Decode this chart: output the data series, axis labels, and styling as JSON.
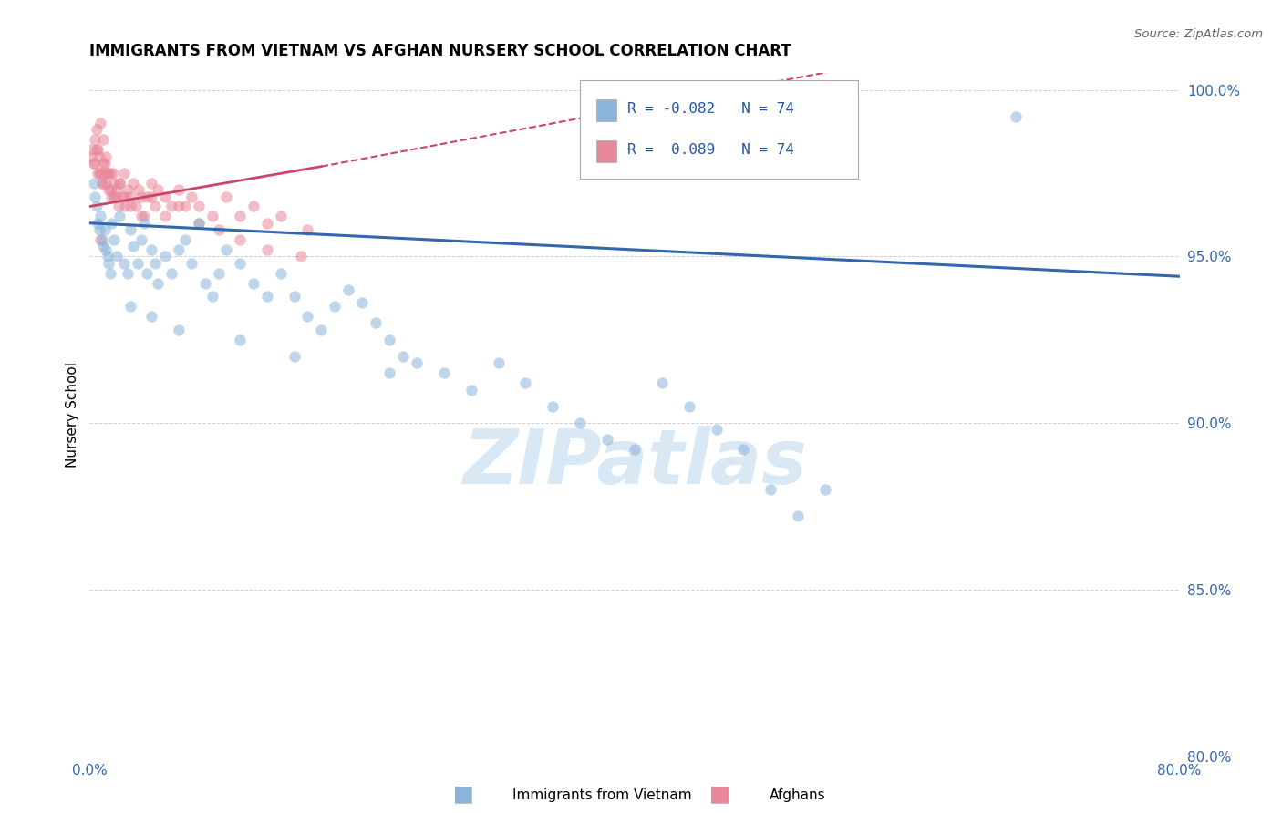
{
  "title": "IMMIGRANTS FROM VIETNAM VS AFGHAN NURSERY SCHOOL CORRELATION CHART",
  "source": "Source: ZipAtlas.com",
  "ylabel": "Nursery School",
  "legend_bottom": [
    "Immigrants from Vietnam",
    "Afghans"
  ],
  "xlim": [
    0.0,
    0.8
  ],
  "ylim": [
    0.8,
    1.005
  ],
  "xticks": [
    0.0,
    0.2,
    0.4,
    0.6,
    0.8
  ],
  "xtick_labels": [
    "0.0%",
    "",
    "",
    "",
    "80.0%"
  ],
  "ytick_labels": [
    "80.0%",
    "85.0%",
    "90.0%",
    "95.0%",
    "100.0%"
  ],
  "yticks": [
    0.8,
    0.85,
    0.9,
    0.95,
    1.0
  ],
  "legend_r_blue": "R = -0.082",
  "legend_n_blue": "N = 74",
  "legend_r_pink": "R =  0.089",
  "legend_n_pink": "N = 74",
  "blue_color": "#8ab4d9",
  "pink_color": "#e8879a",
  "blue_line_color": "#3366aa",
  "pink_line_color": "#cc4466",
  "watermark": "ZIPatlas",
  "watermark_color": "#d8e8f5",
  "blue_scatter_x": [
    0.003,
    0.004,
    0.005,
    0.006,
    0.007,
    0.008,
    0.009,
    0.01,
    0.011,
    0.012,
    0.013,
    0.014,
    0.015,
    0.016,
    0.018,
    0.02,
    0.022,
    0.025,
    0.028,
    0.03,
    0.032,
    0.035,
    0.038,
    0.04,
    0.042,
    0.045,
    0.048,
    0.05,
    0.055,
    0.06,
    0.065,
    0.07,
    0.075,
    0.08,
    0.085,
    0.09,
    0.095,
    0.1,
    0.11,
    0.12,
    0.13,
    0.14,
    0.15,
    0.16,
    0.17,
    0.18,
    0.19,
    0.2,
    0.21,
    0.22,
    0.23,
    0.24,
    0.26,
    0.28,
    0.3,
    0.32,
    0.34,
    0.36,
    0.38,
    0.4,
    0.42,
    0.44,
    0.46,
    0.48,
    0.5,
    0.52,
    0.54,
    0.03,
    0.045,
    0.065,
    0.11,
    0.15,
    0.22,
    0.68
  ],
  "blue_scatter_y": [
    0.972,
    0.968,
    0.965,
    0.96,
    0.958,
    0.962,
    0.955,
    0.953,
    0.958,
    0.952,
    0.95,
    0.948,
    0.945,
    0.96,
    0.955,
    0.95,
    0.962,
    0.948,
    0.945,
    0.958,
    0.953,
    0.948,
    0.955,
    0.96,
    0.945,
    0.952,
    0.948,
    0.942,
    0.95,
    0.945,
    0.952,
    0.955,
    0.948,
    0.96,
    0.942,
    0.938,
    0.945,
    0.952,
    0.948,
    0.942,
    0.938,
    0.945,
    0.938,
    0.932,
    0.928,
    0.935,
    0.94,
    0.936,
    0.93,
    0.925,
    0.92,
    0.918,
    0.915,
    0.91,
    0.918,
    0.912,
    0.905,
    0.9,
    0.895,
    0.892,
    0.912,
    0.905,
    0.898,
    0.892,
    0.88,
    0.872,
    0.88,
    0.935,
    0.932,
    0.928,
    0.925,
    0.92,
    0.915,
    0.992
  ],
  "pink_scatter_x": [
    0.001,
    0.002,
    0.003,
    0.004,
    0.005,
    0.006,
    0.006,
    0.007,
    0.008,
    0.008,
    0.009,
    0.01,
    0.01,
    0.011,
    0.012,
    0.012,
    0.013,
    0.014,
    0.015,
    0.016,
    0.017,
    0.018,
    0.019,
    0.02,
    0.021,
    0.022,
    0.024,
    0.025,
    0.026,
    0.028,
    0.03,
    0.032,
    0.034,
    0.036,
    0.038,
    0.04,
    0.042,
    0.045,
    0.048,
    0.05,
    0.055,
    0.06,
    0.065,
    0.07,
    0.075,
    0.08,
    0.09,
    0.1,
    0.11,
    0.12,
    0.13,
    0.14,
    0.16,
    0.003,
    0.005,
    0.007,
    0.009,
    0.011,
    0.013,
    0.015,
    0.018,
    0.022,
    0.026,
    0.03,
    0.038,
    0.045,
    0.055,
    0.065,
    0.08,
    0.095,
    0.11,
    0.13,
    0.155,
    0.008
  ],
  "pink_scatter_y": [
    0.98,
    0.982,
    0.978,
    0.985,
    0.988,
    0.982,
    0.975,
    0.98,
    0.975,
    0.99,
    0.972,
    0.978,
    0.985,
    0.975,
    0.972,
    0.98,
    0.975,
    0.97,
    0.975,
    0.968,
    0.975,
    0.972,
    0.968,
    0.97,
    0.965,
    0.972,
    0.968,
    0.975,
    0.965,
    0.97,
    0.968,
    0.972,
    0.965,
    0.97,
    0.968,
    0.962,
    0.968,
    0.972,
    0.965,
    0.97,
    0.968,
    0.965,
    0.97,
    0.965,
    0.968,
    0.965,
    0.962,
    0.968,
    0.962,
    0.965,
    0.96,
    0.962,
    0.958,
    0.978,
    0.982,
    0.975,
    0.972,
    0.978,
    0.975,
    0.97,
    0.968,
    0.972,
    0.968,
    0.965,
    0.962,
    0.968,
    0.962,
    0.965,
    0.96,
    0.958,
    0.955,
    0.952,
    0.95,
    0.955
  ]
}
